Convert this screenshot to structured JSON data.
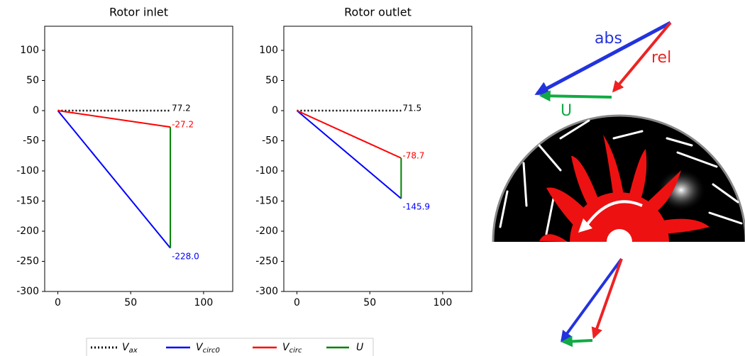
{
  "chart_data": [
    {
      "type": "line",
      "title": "Rotor inlet",
      "xlim": [
        -9,
        120
      ],
      "ylim": [
        -300,
        140
      ],
      "xticks": [
        0,
        50,
        100
      ],
      "yticks": [
        -300,
        -250,
        -200,
        -150,
        -100,
        -50,
        0,
        50,
        100
      ],
      "series": [
        {
          "name": "V",
          "subscript": "ax",
          "color": "#000000",
          "style": "dotted",
          "x": [
            0,
            77.2
          ],
          "values": [
            0,
            0
          ]
        },
        {
          "name": "V",
          "subscript": "circ0",
          "color": "#0000ff",
          "style": "solid",
          "x": [
            0,
            77.2
          ],
          "values": [
            0,
            -228.0
          ]
        },
        {
          "name": "V",
          "subscript": "circ",
          "color": "#ff0000",
          "style": "solid",
          "x": [
            0,
            77.2
          ],
          "values": [
            0,
            -27.2
          ]
        },
        {
          "name": "U",
          "color": "#008000",
          "style": "solid",
          "x": [
            77.2,
            77.2
          ],
          "values": [
            -27.2,
            -228.0
          ]
        }
      ],
      "annotations": [
        {
          "text": "77.2",
          "x": 77.2,
          "y": 0,
          "color": "#000000"
        },
        {
          "text": "-27.2",
          "x": 77.2,
          "y": -27.2,
          "color": "#ff0000"
        },
        {
          "text": "-228.0",
          "x": 77.2,
          "y": -228.0,
          "color": "#0000ff"
        }
      ]
    },
    {
      "type": "line",
      "title": "Rotor outlet",
      "xlim": [
        -9,
        120
      ],
      "ylim": [
        -300,
        140
      ],
      "xticks": [
        0,
        50,
        100
      ],
      "yticks": [
        -300,
        -250,
        -200,
        -150,
        -100,
        -50,
        0,
        50,
        100
      ],
      "series": [
        {
          "color": "#000000",
          "style": "dotted",
          "x": [
            0,
            71.5
          ],
          "values": [
            0,
            0
          ]
        },
        {
          "color": "#0000ff",
          "style": "solid",
          "x": [
            0,
            71.5
          ],
          "values": [
            0,
            -145.9
          ]
        },
        {
          "color": "#ff0000",
          "style": "solid",
          "x": [
            0,
            71.5
          ],
          "values": [
            0,
            -78.7
          ]
        },
        {
          "color": "#008000",
          "style": "solid",
          "x": [
            71.5,
            71.5
          ],
          "values": [
            -78.7,
            -145.9
          ]
        }
      ],
      "annotations": [
        {
          "text": "71.5",
          "x": 71.5,
          "y": 0,
          "color": "#000000"
        },
        {
          "text": "-78.7",
          "x": 71.5,
          "y": -78.7,
          "color": "#ff0000"
        },
        {
          "text": "-145.9",
          "x": 71.5,
          "y": -145.9,
          "color": "#0000ff"
        }
      ]
    }
  ],
  "diagram": {
    "abs": "abs",
    "rel": "rel",
    "u": "U"
  }
}
